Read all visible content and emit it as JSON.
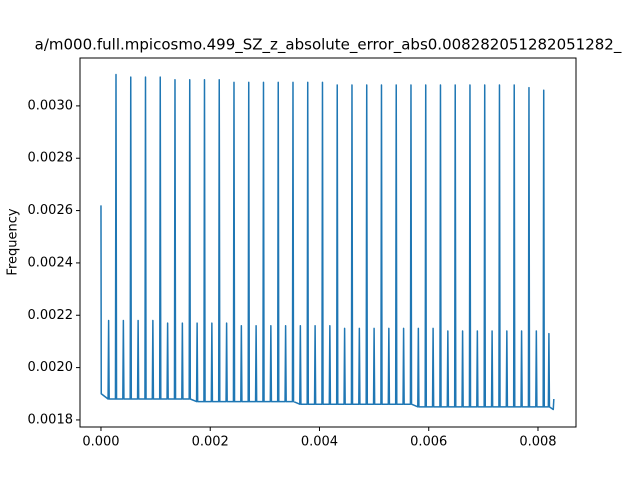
{
  "chart_data": {
    "type": "line",
    "title": "a/m000.full.mpicosmo.499_SZ_z_absolute_error_abs0.008282051282051282_",
    "y_label": "Frequency",
    "color": "#1f77b4",
    "xlim": [
      -0.000384,
      0.008696
    ],
    "ylim": [
      0.001773,
      0.003183
    ],
    "xticks": [
      {
        "value": 0,
        "label": "0.000"
      },
      {
        "value": 0.002,
        "label": "0.002"
      },
      {
        "value": 0.004,
        "label": "0.004"
      },
      {
        "value": 0.006,
        "label": "0.006"
      },
      {
        "value": 0.008,
        "label": "0.008"
      }
    ],
    "yticks": [
      0.0018,
      {
        "value": 0.002,
        "label": "0.0020"
      },
      0.0022,
      0.0024,
      0.0026,
      0.0028,
      {
        "value": 0.003,
        "label": "0.0030"
      }
    ],
    "x": [
      0,
      5e-06,
      0.00013,
      0.00014,
      0.00015,
      0.000265,
      0.000275,
      0.000285,
      0.0004,
      0.00041,
      0.00042,
      0.000535,
      0.000545,
      0.000555,
      0.00067,
      0.00068,
      0.00069,
      0.000805,
      0.000815,
      0.000825,
      0.00094,
      0.00095,
      0.00096,
      0.001075,
      0.001085,
      0.001095,
      0.00121,
      0.00122,
      0.00123,
      0.001345,
      0.001355,
      0.001365,
      0.00148,
      0.00149,
      0.0015,
      0.001615,
      0.001625,
      0.001635,
      0.00175,
      0.00176,
      0.00177,
      0.001885,
      0.001895,
      0.001905,
      0.00202,
      0.00203,
      0.00204,
      0.002155,
      0.002165,
      0.002175,
      0.00229,
      0.0023,
      0.00231,
      0.002425,
      0.002435,
      0.002445,
      0.00256,
      0.00257,
      0.00258,
      0.002695,
      0.002705,
      0.002715,
      0.00283,
      0.00284,
      0.00285,
      0.002965,
      0.002975,
      0.002985,
      0.0031,
      0.00311,
      0.00312,
      0.003235,
      0.003245,
      0.003255,
      0.00337,
      0.00338,
      0.00339,
      0.003505,
      0.003515,
      0.003525,
      0.00364,
      0.00365,
      0.00366,
      0.003775,
      0.003785,
      0.003795,
      0.00391,
      0.00392,
      0.00393,
      0.004045,
      0.004055,
      0.004065,
      0.00418,
      0.00419,
      0.0042,
      0.004315,
      0.004325,
      0.004335,
      0.00445,
      0.00446,
      0.00447,
      0.004585,
      0.004595,
      0.004605,
      0.00472,
      0.00473,
      0.00474,
      0.004855,
      0.004865,
      0.004875,
      0.00499,
      0.005,
      0.00501,
      0.005125,
      0.005135,
      0.005145,
      0.00526,
      0.00527,
      0.00528,
      0.005395,
      0.005405,
      0.005415,
      0.00553,
      0.00554,
      0.00555,
      0.005665,
      0.005675,
      0.005685,
      0.0058,
      0.00581,
      0.00582,
      0.005935,
      0.005945,
      0.005955,
      0.00607,
      0.00608,
      0.00609,
      0.006205,
      0.006215,
      0.006225,
      0.00634,
      0.00635,
      0.00636,
      0.006475,
      0.006485,
      0.006495,
      0.00661,
      0.00662,
      0.00663,
      0.006745,
      0.006755,
      0.006765,
      0.00688,
      0.00689,
      0.0069,
      0.007015,
      0.007025,
      0.007035,
      0.00715,
      0.00716,
      0.00717,
      0.007285,
      0.007295,
      0.007305,
      0.00742,
      0.00743,
      0.00744,
      0.007555,
      0.007565,
      0.007575,
      0.00769,
      0.0077,
      0.00771,
      0.007825,
      0.007835,
      0.007845,
      0.00796,
      0.00797,
      0.00798,
      0.008095,
      0.008105,
      0.008115,
      0.00819,
      0.0082,
      0.00821,
      0.00828,
      0.00829
    ],
    "values": [
      0.00262,
      0.0019,
      0.00188,
      0.00218,
      0.00188,
      0.00188,
      0.00312,
      0.00188,
      0.00188,
      0.00218,
      0.00188,
      0.00188,
      0.00311,
      0.00188,
      0.00188,
      0.00218,
      0.00188,
      0.00188,
      0.00311,
      0.00188,
      0.00188,
      0.00218,
      0.00188,
      0.00188,
      0.00311,
      0.00188,
      0.00188,
      0.00217,
      0.00188,
      0.00188,
      0.0031,
      0.00188,
      0.00188,
      0.00217,
      0.00188,
      0.00188,
      0.0031,
      0.00188,
      0.00187,
      0.00217,
      0.00187,
      0.00187,
      0.0031,
      0.00187,
      0.00187,
      0.00217,
      0.00187,
      0.00187,
      0.0031,
      0.00187,
      0.00187,
      0.00217,
      0.00187,
      0.00187,
      0.00309,
      0.00187,
      0.00187,
      0.00216,
      0.00187,
      0.00187,
      0.00309,
      0.00187,
      0.00187,
      0.00216,
      0.00187,
      0.00187,
      0.00309,
      0.00187,
      0.00187,
      0.00216,
      0.00187,
      0.00187,
      0.00309,
      0.00187,
      0.00187,
      0.00216,
      0.00187,
      0.00187,
      0.00309,
      0.00187,
      0.00186,
      0.00216,
      0.00186,
      0.00186,
      0.00309,
      0.00186,
      0.00186,
      0.00216,
      0.00186,
      0.00186,
      0.00309,
      0.00186,
      0.00186,
      0.00216,
      0.00186,
      0.00186,
      0.00308,
      0.00186,
      0.00186,
      0.00215,
      0.00186,
      0.00186,
      0.00308,
      0.00186,
      0.00186,
      0.00215,
      0.00186,
      0.00186,
      0.00308,
      0.00186,
      0.00186,
      0.00215,
      0.00186,
      0.00186,
      0.00308,
      0.00186,
      0.00186,
      0.00215,
      0.00186,
      0.00186,
      0.00308,
      0.00186,
      0.00186,
      0.00215,
      0.00186,
      0.00186,
      0.00308,
      0.00186,
      0.00185,
      0.00215,
      0.00185,
      0.00185,
      0.00308,
      0.00185,
      0.00185,
      0.00215,
      0.00185,
      0.00185,
      0.00308,
      0.00185,
      0.00185,
      0.00214,
      0.00185,
      0.00185,
      0.00308,
      0.00185,
      0.00185,
      0.00214,
      0.00185,
      0.00185,
      0.00308,
      0.00185,
      0.00185,
      0.00214,
      0.00185,
      0.00185,
      0.00308,
      0.00185,
      0.00185,
      0.00214,
      0.00185,
      0.00185,
      0.00308,
      0.00185,
      0.00185,
      0.00214,
      0.00185,
      0.00185,
      0.00308,
      0.00185,
      0.00185,
      0.00214,
      0.00185,
      0.00185,
      0.00307,
      0.00185,
      0.00185,
      0.00214,
      0.00185,
      0.00185,
      0.00306,
      0.00185,
      0.00185,
      0.00213,
      0.00185,
      0.00184,
      0.00188
    ]
  }
}
